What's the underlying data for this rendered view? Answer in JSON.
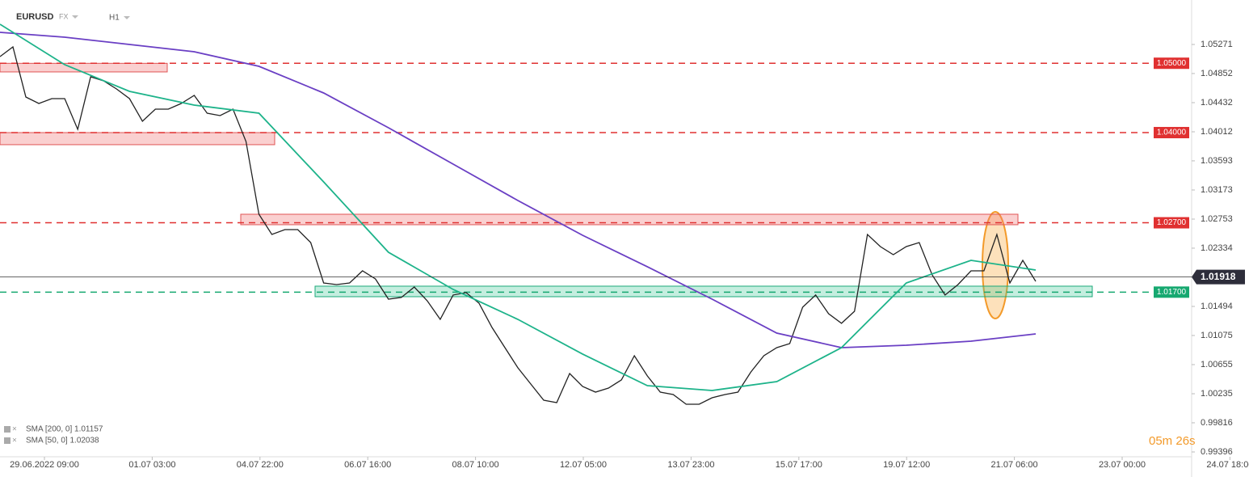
{
  "chart_data": {
    "type": "line",
    "symbol": "EURUSD",
    "market": "FX",
    "interval": "H1",
    "timer": "05m 26s",
    "ylim": [
      0.99326,
      1.05912
    ],
    "yticks": [
      1.05271,
      1.04852,
      1.04432,
      1.04012,
      1.03593,
      1.03173,
      1.02753,
      1.02334,
      1.01494,
      1.01075,
      1.00655,
      1.00235,
      0.99816,
      0.99396
    ],
    "xticks": [
      "29.06.2022 09:00",
      "01.07 03:00",
      "04.07 22:00",
      "06.07 16:00",
      "08.07 10:00",
      "12.07 05:00",
      "13.07 23:00",
      "15.07 17:00",
      "19.07 12:00",
      "21.07 06:00",
      "23.07 00:00",
      "24.07 18:00"
    ],
    "series": [
      {
        "name": "EURUSD",
        "color": "#222222",
        "values": [
          1.05096,
          1.05236,
          1.04513,
          1.0442,
          1.0449,
          1.0449,
          1.04047,
          1.04805,
          1.04746,
          1.0463,
          1.0449,
          1.04164,
          1.04338,
          1.04338,
          1.0442,
          1.04537,
          1.0428,
          1.04245,
          1.04338,
          1.03872,
          1.02823,
          1.02532,
          1.02602,
          1.02602,
          1.02415,
          1.01832,
          1.01809,
          1.01832,
          1.02007,
          1.01891,
          1.01599,
          1.01623,
          1.01774,
          1.01576,
          1.01308,
          1.01658,
          1.01693,
          1.01541,
          1.01191,
          1.009,
          1.00609,
          1.00375,
          1.00142,
          1.00107,
          1.00527,
          1.0034,
          1.00259,
          1.00317,
          1.00434,
          1.00783,
          1.00492,
          1.00259,
          1.00224,
          1.00084,
          1.00084,
          1.00177,
          1.00224,
          1.00259,
          1.0055,
          1.00783,
          1.009,
          1.00958,
          1.01483,
          1.01658,
          1.01389,
          1.0125,
          1.01424,
          1.02532,
          1.02357,
          1.0224,
          1.02357,
          1.02415,
          1.01949,
          1.01658,
          1.01809,
          1.02007,
          1.02007,
          1.02532,
          1.01832,
          1.02159,
          1.01856
        ]
      },
      {
        "name": "SMA [200, 0] 1.01157",
        "color": "#6a3fc4",
        "values": [
          1.05446,
          1.05376,
          1.05271,
          1.05166,
          1.04956,
          1.04572,
          1.0407,
          1.03546,
          1.03021,
          1.0252,
          1.02066,
          1.01599,
          1.0111,
          1.009,
          1.00935,
          1.00993,
          1.01098
        ]
      },
      {
        "name": "SMA [50, 0] 1.02038",
        "color": "#1db38a",
        "values": [
          1.05562,
          1.0498,
          1.04595,
          1.04397,
          1.0428,
          1.03289,
          1.02275,
          1.01739,
          1.01308,
          1.00807,
          1.00352,
          1.00282,
          1.0041,
          1.009,
          1.01832,
          1.02159,
          1.02019
        ]
      }
    ],
    "levels": [
      {
        "value": 1.05,
        "label": "1.05000",
        "color": "#e03030"
      },
      {
        "value": 1.04,
        "label": "1.04000",
        "color": "#e03030"
      },
      {
        "value": 1.027,
        "label": "1.02700",
        "color": "#e03030"
      },
      {
        "value": 1.017,
        "label": "1.01700",
        "color": "#16a870"
      }
    ],
    "current_price": {
      "value": 1.01918,
      "label": "1.01918"
    },
    "zones": [
      {
        "range": [
          1.04875,
          1.04999
        ],
        "color": "red"
      },
      {
        "range": [
          1.03826,
          1.04
        ],
        "color": "red"
      },
      {
        "range": [
          1.02672,
          1.02823
        ],
        "color": "red"
      },
      {
        "range": [
          1.01634,
          1.01786
        ],
        "color": "green"
      }
    ]
  }
}
